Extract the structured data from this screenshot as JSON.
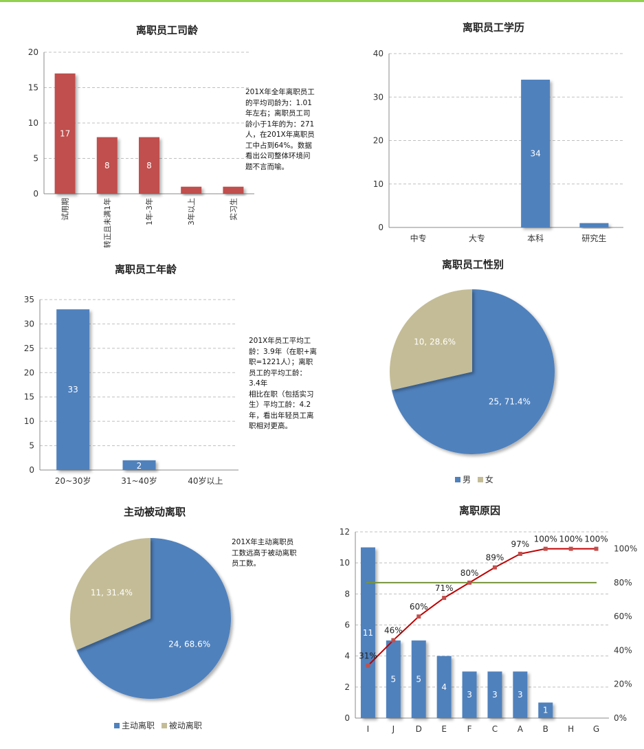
{
  "colors": {
    "red": "#c0504d",
    "blue": "#4f81bd",
    "tan": "#c4bc96",
    "pareto_line": "#c00000",
    "ref_line": "#77933c",
    "grid": "#bfbfbf",
    "accent_bar": "#92d050"
  },
  "chart_data": [
    {
      "id": "tenure",
      "type": "bar",
      "title": "离职员工司龄",
      "categories": [
        "试用期",
        "转正且未满1年",
        "1年-3年",
        "3年以上",
        "实习生"
      ],
      "values": [
        17,
        8,
        8,
        1,
        1
      ],
      "data_labels": [
        "17",
        "8",
        "8",
        "",
        ""
      ],
      "yticks": [
        "0",
        "5",
        "10",
        "15",
        "20"
      ],
      "ylim": [
        0,
        20
      ],
      "grid": true,
      "color": "#c0504d",
      "note": "201X年全年离职员工的平均司龄为：1.01年左右；离职员工司龄小于1年的为：271人，在201X年离职员工中占到64%。数据看出公司整体环境问题不言而喻。"
    },
    {
      "id": "education",
      "type": "bar",
      "title": "离职员工学历",
      "categories": [
        "中专",
        "大专",
        "本科",
        "研究生"
      ],
      "values": [
        0,
        0,
        34,
        1
      ],
      "data_labels": [
        "",
        "",
        "34",
        ""
      ],
      "yticks": [
        "0",
        "10",
        "20",
        "30",
        "40"
      ],
      "ylim": [
        0,
        40
      ],
      "grid": true,
      "color": "#4f81bd"
    },
    {
      "id": "age",
      "type": "bar",
      "title": "离职员工年龄",
      "categories": [
        "20~30岁",
        "31~40岁",
        "40岁以上"
      ],
      "values": [
        33,
        2,
        0
      ],
      "data_labels": [
        "33",
        "2",
        ""
      ],
      "yticks": [
        "0",
        "5",
        "10",
        "15",
        "20",
        "25",
        "30",
        "35"
      ],
      "ylim": [
        0,
        35
      ],
      "grid": true,
      "color": "#4f81bd",
      "note": "201X年员工平均工龄：3.9年（在职+离职=1221人）；离职员工的平均工龄：3.4年\n相比在职（包括实习生）平均工龄：4.2年，看出年轻员工离职相对更高。"
    },
    {
      "id": "gender",
      "type": "pie",
      "title": "离职员工性别",
      "slices": [
        {
          "name": "男",
          "value": 25,
          "label": "25, 71.4%",
          "color": "#4f81bd"
        },
        {
          "name": "女",
          "value": 10,
          "label": "10, 28.6%",
          "color": "#c4bc96"
        }
      ],
      "legend": "bottom"
    },
    {
      "id": "voluntary",
      "type": "pie",
      "title": "主动被动离职",
      "slices": [
        {
          "name": "主动离职",
          "value": 24,
          "label": "24, 68.6%",
          "color": "#4f81bd"
        },
        {
          "name": "被动离职",
          "value": 11,
          "label": "11, 31.4%",
          "color": "#c4bc96"
        }
      ],
      "legend": "bottom",
      "note": "201X年主动离职员工数远高于被动离职员工数。"
    },
    {
      "id": "reasons",
      "type": "bar",
      "title": "离职原因",
      "categories": [
        "I",
        "J",
        "D",
        "E",
        "F",
        "C",
        "A",
        "B",
        "H",
        "G"
      ],
      "values": [
        11,
        5,
        5,
        4,
        3,
        3,
        3,
        1,
        0,
        0
      ],
      "data_labels": [
        "11",
        "5",
        "5",
        "4",
        "3",
        "3",
        "3",
        "1",
        "",
        ""
      ],
      "yticks": [
        "0",
        "2",
        "4",
        "6",
        "8",
        "10",
        "12"
      ],
      "ylim": [
        0,
        12
      ],
      "y2ticks": [
        "0%",
        "20%",
        "40%",
        "60%",
        "80%",
        "100%"
      ],
      "y2lim": [
        0,
        110
      ],
      "cumulative_percent": [
        31,
        46,
        60,
        71,
        80,
        89,
        97,
        100,
        100,
        100
      ],
      "cumulative_labels": [
        "31%",
        "46%",
        "60%",
        "71%",
        "80%",
        "89%",
        "97%",
        "100%",
        "100%",
        "100%"
      ],
      "reference_percent": 80,
      "grid": true,
      "color": "#4f81bd"
    }
  ]
}
